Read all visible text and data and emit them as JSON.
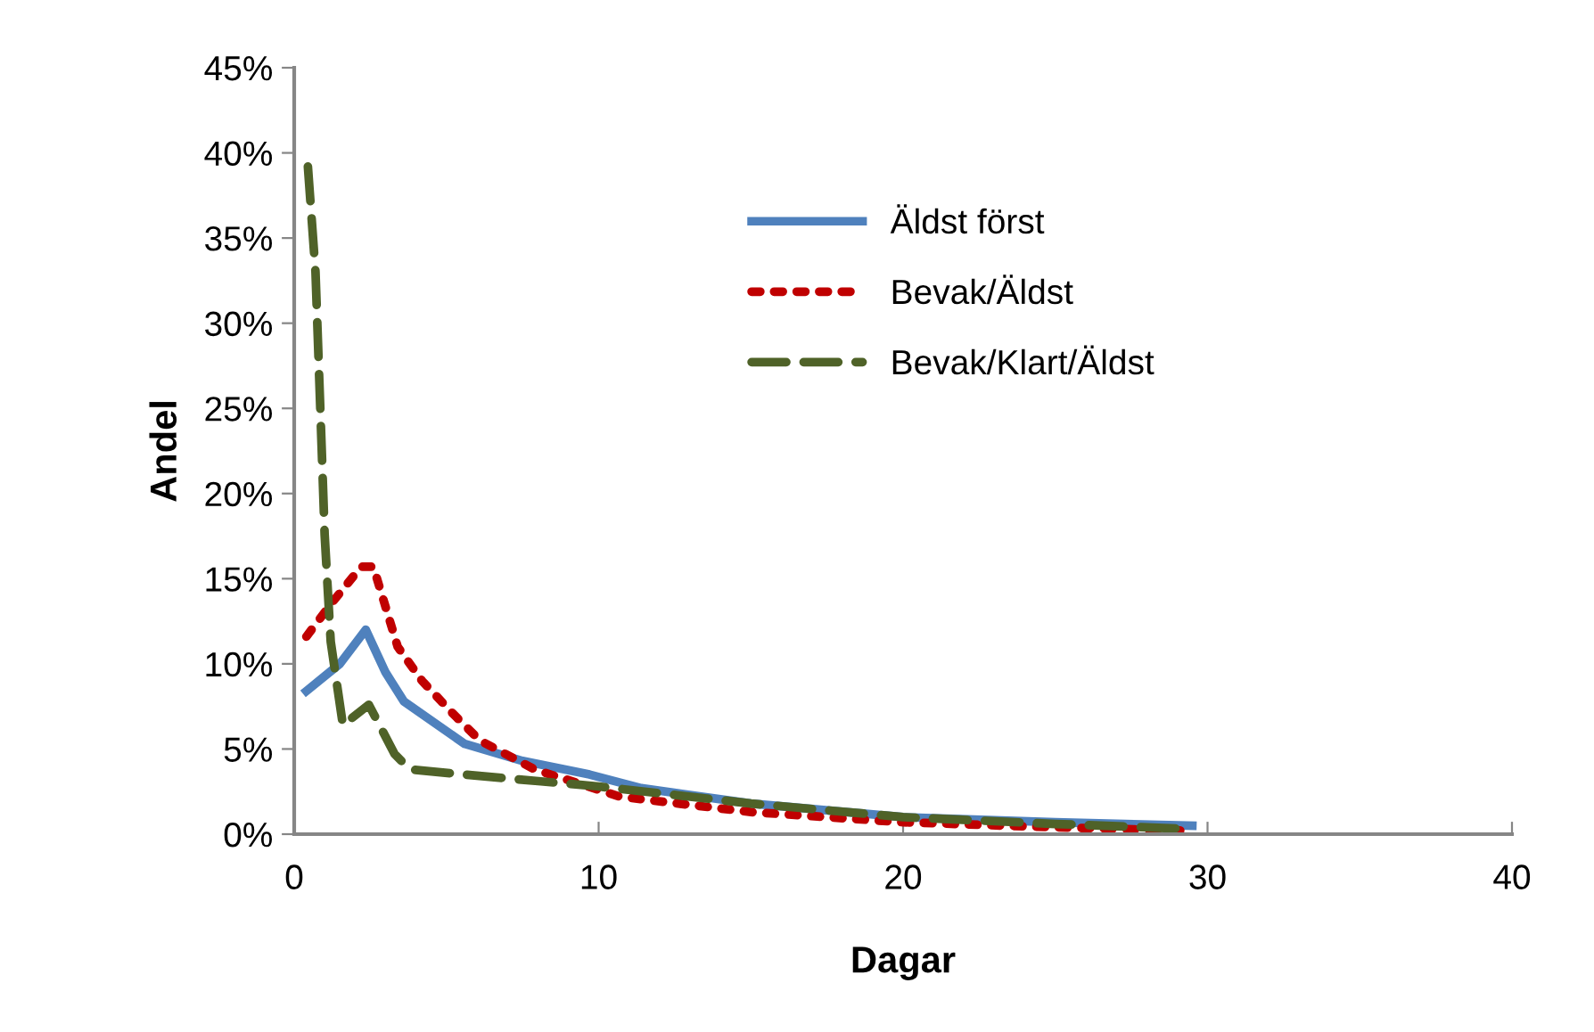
{
  "chart_data": {
    "type": "line",
    "xlabel": "Dagar",
    "ylabel": "Andel",
    "xlim": [
      0,
      40
    ],
    "xticks": [
      0,
      10,
      20,
      30,
      40
    ],
    "ylim": [
      0,
      45
    ],
    "yticks": [
      {
        "value": 0,
        "label": "0%"
      },
      {
        "value": 5,
        "label": "5%"
      },
      {
        "value": 10,
        "label": "10%"
      },
      {
        "value": 15,
        "label": "15%"
      },
      {
        "value": 20,
        "label": "20%"
      },
      {
        "value": 25,
        "label": "25%"
      },
      {
        "value": 30,
        "label": "30%"
      },
      {
        "value": 35,
        "label": "35%"
      },
      {
        "value": 40,
        "label": "40%"
      },
      {
        "value": 45,
        "label": "45%"
      }
    ],
    "grid": false,
    "legend": "right",
    "marker": "none",
    "series": [
      {
        "name": "Äldst först",
        "color": "#4f81bd",
        "line_style": "solid",
        "x": [
          0.4,
          1.5,
          2.35,
          3.0,
          3.6,
          5.6,
          7.5,
          9.7,
          11.4,
          15,
          20,
          25,
          29.5
        ],
        "values": [
          8.4,
          10.0,
          12.0,
          9.5,
          7.8,
          5.3,
          4.3,
          3.5,
          2.7,
          1.8,
          1.0,
          0.7,
          0.5
        ]
      },
      {
        "name": "Bevak/Äldst",
        "color": "#c00000",
        "line_style": "dotted",
        "x": [
          0.4,
          1.2,
          2.2,
          2.6,
          3.4,
          4.2,
          5.2,
          6.1,
          7.9,
          10.7,
          15,
          20,
          25,
          29.5
        ],
        "values": [
          11.6,
          13.5,
          15.7,
          15.7,
          11.0,
          9.0,
          7.1,
          5.5,
          3.8,
          2.2,
          1.3,
          0.7,
          0.4,
          0.2
        ]
      },
      {
        "name": "Bevak/Klart/Äldst",
        "color": "#4f6228",
        "line_style": "dashed",
        "x": [
          0.45,
          0.7,
          0.9,
          1.0,
          1.2,
          1.6,
          2.45,
          3.3,
          3.8,
          5.6,
          8.1,
          10,
          15,
          20,
          25,
          29.5
        ],
        "values": [
          39.2,
          33.0,
          22.8,
          17.6,
          11.3,
          6.4,
          7.6,
          4.7,
          3.8,
          3.5,
          3.1,
          2.8,
          1.8,
          1.0,
          0.6,
          0.3
        ]
      }
    ]
  }
}
